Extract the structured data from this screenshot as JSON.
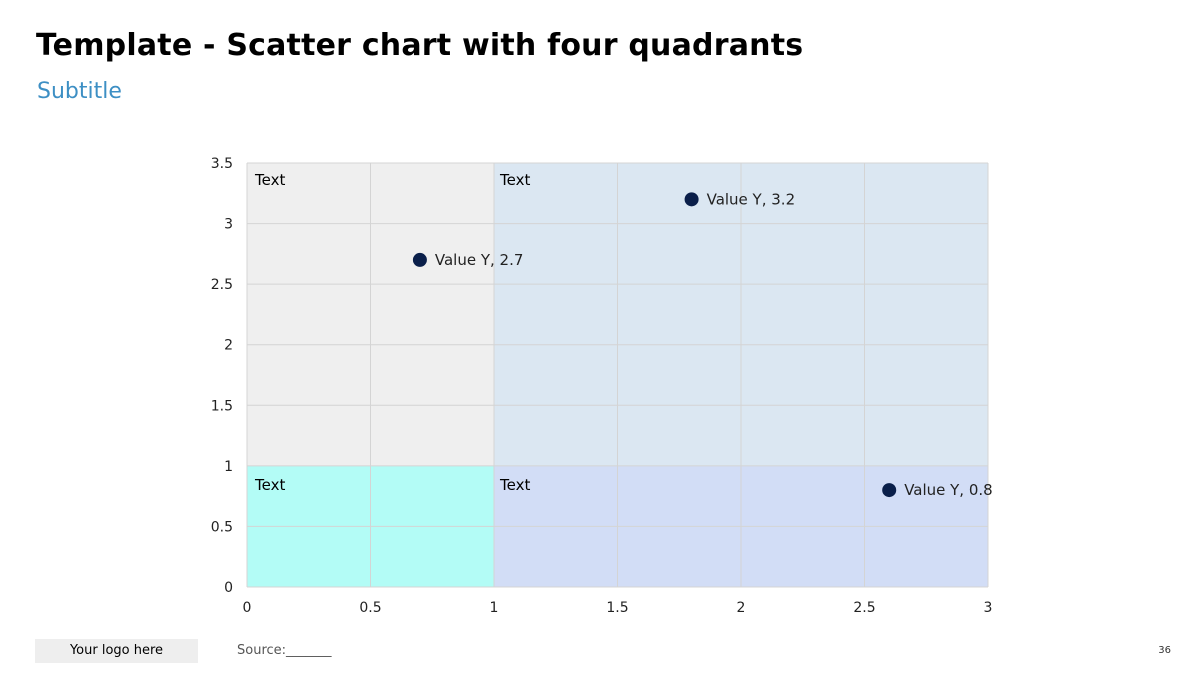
{
  "header": {
    "title": "Template - Scatter chart with four quadrants",
    "subtitle": "Subtitle"
  },
  "footer": {
    "logo_text": "Your logo here",
    "source_text": "Source:_______",
    "page_number": "36"
  },
  "colors": {
    "quadrant_top_left": "#efefef",
    "quadrant_top_right": "#dbe7f2",
    "quadrant_bottom_left": "#b3fcf6",
    "quadrant_bottom_right": "#d2ddf6",
    "point": "#0a1f4a",
    "gridline": "#d4d4d4",
    "subtitle": "#3d8fc4"
  },
  "chart_data": {
    "type": "scatter",
    "title": "",
    "xlabel": "",
    "ylabel": "",
    "xlim": [
      0,
      3
    ],
    "ylim": [
      0,
      3.5
    ],
    "x_ticks": [
      "0",
      "0.5",
      "1",
      "1.5",
      "2",
      "2.5",
      "3"
    ],
    "y_ticks": [
      "0",
      "0.5",
      "1",
      "1.5",
      "2",
      "2.5",
      "3",
      "3.5"
    ],
    "grid": true,
    "quadrant_split": {
      "x": 1,
      "y": 1
    },
    "quadrant_labels": {
      "top_left": "Text",
      "top_right": "Text",
      "bottom_left": "Text",
      "bottom_right": "Text"
    },
    "points": [
      {
        "x": 0.7,
        "y": 2.7,
        "label": "Value Y, 2.7"
      },
      {
        "x": 1.8,
        "y": 3.2,
        "label": "Value Y, 3.2"
      },
      {
        "x": 2.6,
        "y": 0.8,
        "label": "Value Y, 0.8"
      }
    ]
  }
}
